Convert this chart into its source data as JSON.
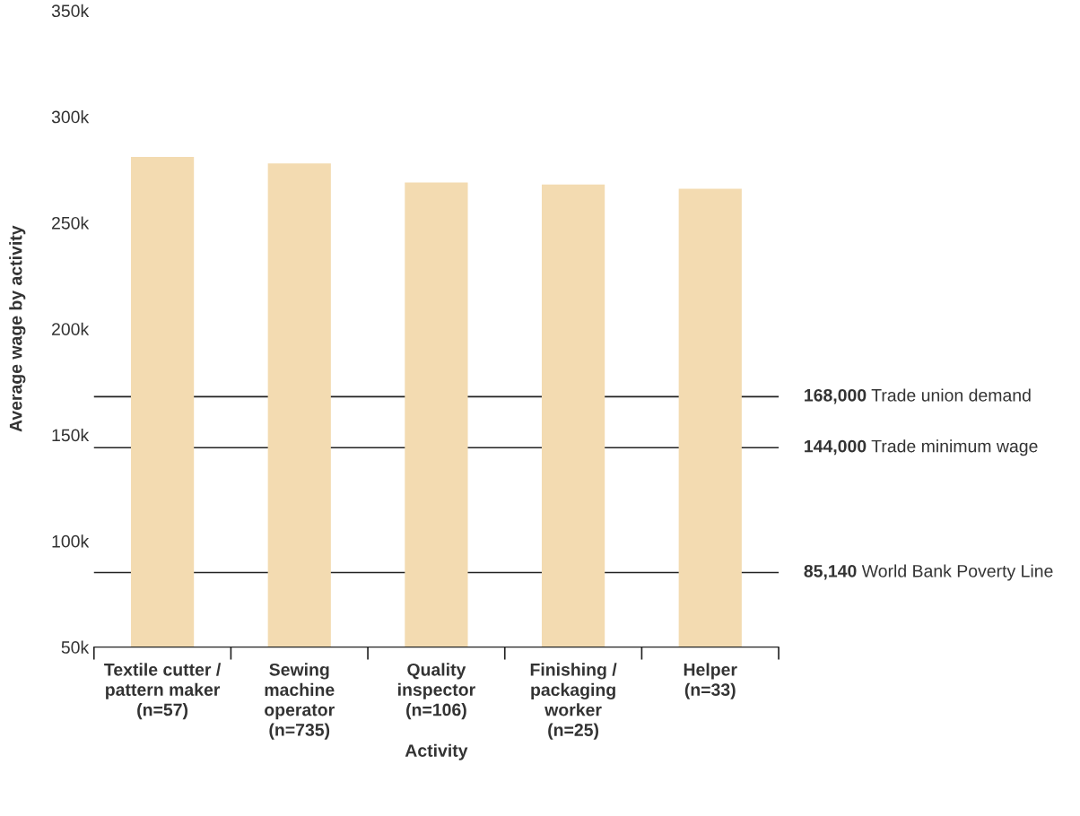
{
  "chart_data": {
    "type": "bar",
    "xlabel": "Activity",
    "ylabel": "Average wage by activity",
    "categories": [
      "Textile cutter /\npattern maker\n(n=57)",
      "Sewing\nmachine\noperator\n(n=735)",
      "Quality\ninspector\n(n=106)",
      "Finishing /\npackaging\nworker\n(n=25)",
      "Helper\n(n=33)"
    ],
    "values": [
      281000,
      278000,
      269000,
      268000,
      266000
    ],
    "color": "#f3dbb1",
    "ylim": [
      50000,
      350000
    ],
    "yticks": [
      {
        "value": 50000,
        "label": "50k"
      },
      {
        "value": 100000,
        "label": "100k"
      },
      {
        "value": 150000,
        "label": "150k"
      },
      {
        "value": 200000,
        "label": "200k"
      },
      {
        "value": 250000,
        "label": "250k"
      },
      {
        "value": 300000,
        "label": "300k"
      },
      {
        "value": 350000,
        "label": "350k"
      }
    ],
    "ref_lines": [
      {
        "axis": "y",
        "value": 168000,
        "label": "168,000 Trade union demand",
        "color": "#222222"
      },
      {
        "axis": "y",
        "value": 144000,
        "label": "144,000 Trade minimum wage",
        "color": "#222222"
      },
      {
        "axis": "y",
        "value": 85140,
        "label": "85,140 World Bank Poverty Line",
        "color": "#222222"
      }
    ],
    "grid": false,
    "legend": false
  }
}
